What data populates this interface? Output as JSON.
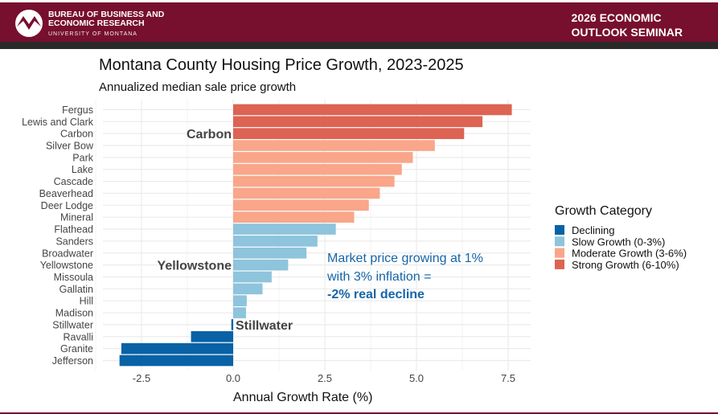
{
  "header": {
    "org_line1": "BUREAU OF BUSINESS AND",
    "org_line2": "ECONOMIC RESEARCH",
    "org_sub": "UNIVERSITY OF MONTANA",
    "seminar_line1": "2026 ECONOMIC",
    "seminar_line2": "OUTLOOK SEMINAR",
    "brand_color": "#770f2f"
  },
  "chart_data": {
    "type": "bar",
    "orientation": "horizontal",
    "title": "Montana County Housing Price Growth, 2023-2025",
    "subtitle": "Annualized median sale price growth",
    "xlabel": "Annual Growth Rate (%)",
    "ylabel": "",
    "xlim": [
      -3.1,
      7.6
    ],
    "xticks": [
      "-2.5",
      "0.0",
      "2.5",
      "5.0",
      "7.5"
    ],
    "grid": true,
    "categories": [
      "Fergus",
      "Lewis and Clark",
      "Carbon",
      "Silver Bow",
      "Park",
      "Lake",
      "Cascade",
      "Beaverhead",
      "Deer Lodge",
      "Mineral",
      "Flathead",
      "Sanders",
      "Broadwater",
      "Yellowstone",
      "Missoula",
      "Gallatin",
      "Hill",
      "Madison",
      "Stillwater",
      "Ravalli",
      "Granite",
      "Jefferson"
    ],
    "values": [
      7.6,
      6.8,
      6.3,
      5.5,
      4.9,
      4.6,
      4.4,
      4.0,
      3.7,
      3.3,
      2.8,
      2.3,
      2.0,
      1.5,
      1.05,
      0.8,
      0.37,
      0.35,
      -0.05,
      -1.15,
      -3.05,
      -3.1
    ],
    "groups": [
      "Strong Growth (6-10%)",
      "Strong Growth (6-10%)",
      "Strong Growth (6-10%)",
      "Moderate Growth (3-6%)",
      "Moderate Growth (3-6%)",
      "Moderate Growth (3-6%)",
      "Moderate Growth (3-6%)",
      "Moderate Growth (3-6%)",
      "Moderate Growth (3-6%)",
      "Moderate Growth (3-6%)",
      "Slow Growth (0-3%)",
      "Slow Growth (0-3%)",
      "Slow Growth (0-3%)",
      "Slow Growth (0-3%)",
      "Slow Growth (0-3%)",
      "Slow Growth (0-3%)",
      "Slow Growth (0-3%)",
      "Slow Growth (0-3%)",
      "Declining",
      "Declining",
      "Declining",
      "Declining"
    ],
    "legend": {
      "title": "Growth Category",
      "placement": "right",
      "entries": [
        {
          "name": "Declining",
          "color": "#0862a5"
        },
        {
          "name": "Slow Growth (0-3%)",
          "color": "#8ec4dc"
        },
        {
          "name": "Moderate Growth (3-6%)",
          "color": "#f9a68a"
        },
        {
          "name": "Strong Growth (6-10%)",
          "color": "#dd6353"
        }
      ]
    },
    "highlight_labels": [
      "Carbon",
      "Yellowstone",
      "Stillwater"
    ],
    "annotation": {
      "line1": "Market price growing at 1%",
      "line2": "with 3% inflation =",
      "line3": "-2% real decline",
      "color": "#1565a8"
    }
  }
}
